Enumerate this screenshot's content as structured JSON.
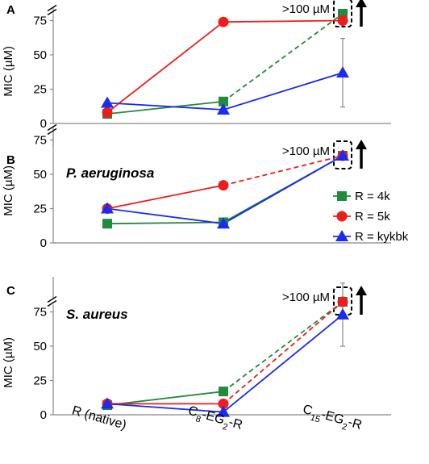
{
  "chart_data": {
    "type": "line",
    "categories": [
      "R (native)",
      "C8-EG2-R",
      "C15-EG2-R"
    ],
    "x_tick_labels": [
      {
        "base": "R (native)",
        "sub1": "",
        "mid": "",
        "sub2": "",
        "tail": ""
      },
      {
        "base": "C",
        "sub1": "8",
        "mid": "-EG",
        "sub2": "2",
        "tail": "-R"
      },
      {
        "base": "C",
        "sub1": "15",
        "mid": "-EG",
        "sub2": "2",
        "tail": "-R"
      }
    ],
    "legend": [
      {
        "name": "R = 4k",
        "color": "#1e8c3c",
        "marker": "square"
      },
      {
        "name": "R = 5k",
        "color": "#ee1c1c",
        "marker": "circle"
      },
      {
        "name": "R = kykbk",
        "color": "#1a2cf0",
        "marker": "triangle"
      }
    ],
    "legend_placement": "right of panel B",
    "gt_label": ">100 µM",
    "overflow_value": 100,
    "panels": [
      {
        "panel_label": "A",
        "organism": "",
        "ylabel": "MIC (µM)",
        "yticks": [
          0,
          25,
          50,
          75
        ],
        "ylim": [
          0,
          100
        ],
        "axis_break": true,
        "series": [
          {
            "name": "R = 4k",
            "values": [
              7,
              16,
              100
            ],
            "errors": [
              0,
              0,
              0
            ],
            "dashed_segments": [
              1
            ]
          },
          {
            "name": "R = 5k",
            "values": [
              8,
              74,
              75
            ],
            "errors": [
              0,
              3,
              0
            ],
            "dashed_segments": []
          },
          {
            "name": "R = kykbk",
            "values": [
              15,
              10,
              37
            ],
            "errors": [
              0,
              0,
              25
            ],
            "dashed_segments": []
          }
        ]
      },
      {
        "panel_label": "B",
        "organism": "P. aeruginosa",
        "ylabel": "MIC (µM)",
        "yticks": [
          0,
          25,
          50,
          75
        ],
        "ylim": [
          0,
          100
        ],
        "axis_break": true,
        "series": [
          {
            "name": "R = 4k",
            "values": [
              14,
              15,
              100
            ],
            "errors": [
              3,
              0,
              0
            ],
            "dashed_segments": []
          },
          {
            "name": "R = 5k",
            "values": [
              25,
              42,
              100
            ],
            "errors": [
              3,
              0,
              0
            ],
            "dashed_segments": [
              1
            ]
          },
          {
            "name": "R = kykbk",
            "values": [
              25,
              14,
              100
            ],
            "errors": [
              0,
              0,
              0
            ],
            "dashed_segments": []
          }
        ]
      },
      {
        "panel_label": "C",
        "organism": "S. aureus",
        "ylabel": "MIC (µM)",
        "yticks": [
          0,
          25,
          50,
          75
        ],
        "ylim": [
          0,
          100
        ],
        "axis_break": true,
        "series": [
          {
            "name": "R = 4k",
            "values": [
              7,
              17,
              100
            ],
            "errors": [
              0,
              0,
              0
            ],
            "dashed_segments": [
              1
            ]
          },
          {
            "name": "R = 5k",
            "values": [
              8,
              8,
              100
            ],
            "errors": [
              2,
              0,
              0
            ],
            "dashed_segments": [
              1
            ]
          },
          {
            "name": "R = kykbk",
            "values": [
              8,
              2,
              73
            ],
            "errors": [
              0,
              0,
              23
            ],
            "dashed_segments": []
          }
        ]
      }
    ]
  }
}
